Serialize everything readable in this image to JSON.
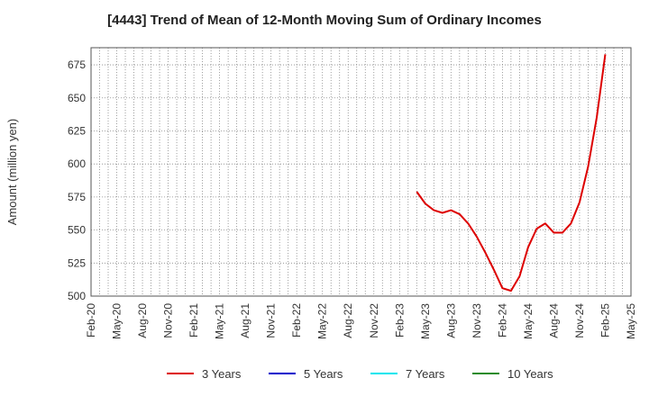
{
  "chart_data": {
    "type": "line",
    "title": "[4443]  Trend of Mean of 12-Month Moving Sum of Ordinary Incomes",
    "xlabel": "",
    "ylabel": "Amount (million yen)",
    "ylim": [
      500,
      688
    ],
    "yticks": [
      500,
      525,
      550,
      575,
      600,
      625,
      650,
      675
    ],
    "x_start": "Feb-20",
    "x_end": "May-25",
    "xticks": [
      "Feb-20",
      "May-20",
      "Aug-20",
      "Nov-20",
      "Feb-21",
      "May-21",
      "Aug-21",
      "Nov-21",
      "Feb-22",
      "May-22",
      "Aug-22",
      "Nov-22",
      "Feb-23",
      "May-23",
      "Aug-23",
      "Nov-23",
      "Feb-24",
      "May-24",
      "Aug-24",
      "Nov-24",
      "Feb-25",
      "May-25"
    ],
    "grid": true,
    "legend_position": "bottom",
    "series": [
      {
        "name": "3 Years",
        "color": "#dd0000",
        "points": [
          [
            "Apr-23",
            579
          ],
          [
            "May-23",
            570
          ],
          [
            "Jun-23",
            565
          ],
          [
            "Jul-23",
            563
          ],
          [
            "Aug-23",
            565
          ],
          [
            "Sep-23",
            562
          ],
          [
            "Oct-23",
            555
          ],
          [
            "Nov-23",
            545
          ],
          [
            "Dec-23",
            533
          ],
          [
            "Jan-24",
            520
          ],
          [
            "Feb-24",
            506
          ],
          [
            "Mar-24",
            504
          ],
          [
            "Apr-24",
            515
          ],
          [
            "May-24",
            537
          ],
          [
            "Jun-24",
            551
          ],
          [
            "Jul-24",
            555
          ],
          [
            "Aug-24",
            548
          ],
          [
            "Sep-24",
            548
          ],
          [
            "Oct-24",
            555
          ],
          [
            "Nov-24",
            571
          ],
          [
            "Dec-24",
            598
          ],
          [
            "Jan-25",
            635
          ],
          [
            "Feb-25",
            683
          ]
        ]
      },
      {
        "name": "5 Years",
        "color": "#0000cc",
        "points": []
      },
      {
        "name": "7 Years",
        "color": "#00e5ee",
        "points": []
      },
      {
        "name": "10 Years",
        "color": "#228b22",
        "points": []
      }
    ]
  }
}
